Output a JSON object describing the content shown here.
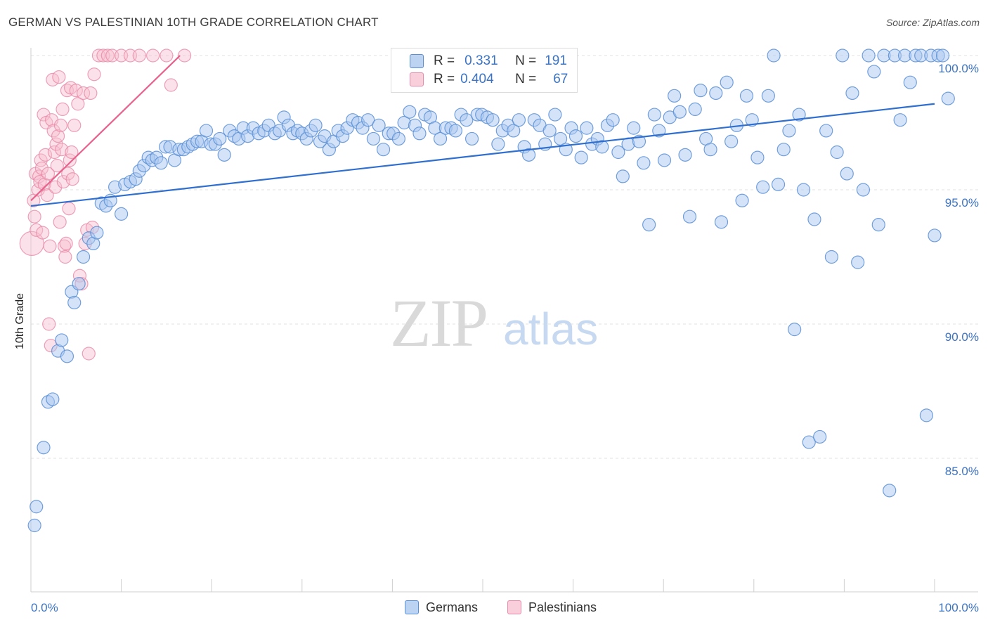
{
  "title": "GERMAN VS PALESTINIAN 10TH GRADE CORRELATION CHART",
  "source": "Source: ZipAtlas.com",
  "watermark": {
    "zip": "ZIP",
    "atlas": "atlas"
  },
  "legend": {
    "rows": [
      {
        "r_label": "R =",
        "r_value": "0.331",
        "n_label": "N =",
        "n_value": "191"
      },
      {
        "r_label": "R =",
        "r_value": "0.404",
        "n_label": "N =",
        "n_value": "67"
      }
    ]
  },
  "bottom_legend": {
    "germans": "Germans",
    "palestinians": "Palestinians"
  },
  "colors": {
    "german_fill": "#a9c8ef",
    "german_stroke": "#5a8fd6",
    "german_line": "#2f6fcf",
    "palestinian_fill": "#f6bfd0",
    "palestinian_stroke": "#e88aa8",
    "palestinian_line": "#e8628d",
    "tick_text": "#3b73c5"
  },
  "chart_data": {
    "type": "scatter",
    "title": "GERMAN VS PALESTINIAN 10TH GRADE CORRELATION CHART",
    "xlabel": "",
    "ylabel": "10th Grade",
    "xlim": [
      0,
      100
    ],
    "ylim": [
      80.0,
      100.5
    ],
    "x_tick_labels": [
      "0.0%",
      "100.0%"
    ],
    "y_ticks": [
      85,
      90,
      95,
      100
    ],
    "y_tick_labels": [
      "85.0%",
      "90.0%",
      "95.0%",
      "100.0%"
    ],
    "grid": true,
    "legend_position": "top-center",
    "series": [
      {
        "name": "Germans",
        "r": 0.331,
        "n": 191,
        "trend": {
          "x": [
            0,
            100
          ],
          "y": [
            94.4,
            98.2
          ]
        },
        "points": [
          [
            0.4,
            82.5
          ],
          [
            0.6,
            83.2
          ],
          [
            1.4,
            85.4
          ],
          [
            1.9,
            87.1
          ],
          [
            2.4,
            87.2
          ],
          [
            3.0,
            89.0
          ],
          [
            3.4,
            89.4
          ],
          [
            4.0,
            88.8
          ],
          [
            4.5,
            91.2
          ],
          [
            4.8,
            90.8
          ],
          [
            5.3,
            91.5
          ],
          [
            5.8,
            92.5
          ],
          [
            6.4,
            93.2
          ],
          [
            6.9,
            93.0
          ],
          [
            7.3,
            93.4
          ],
          [
            7.8,
            94.5
          ],
          [
            8.3,
            94.4
          ],
          [
            8.8,
            94.6
          ],
          [
            9.3,
            95.1
          ],
          [
            10.0,
            94.1
          ],
          [
            10.4,
            95.2
          ],
          [
            11.0,
            95.3
          ],
          [
            11.6,
            95.4
          ],
          [
            12.0,
            95.7
          ],
          [
            12.5,
            95.9
          ],
          [
            13.0,
            96.2
          ],
          [
            13.4,
            96.1
          ],
          [
            13.9,
            96.2
          ],
          [
            14.4,
            96.0
          ],
          [
            14.9,
            96.6
          ],
          [
            15.4,
            96.6
          ],
          [
            15.9,
            96.1
          ],
          [
            16.4,
            96.5
          ],
          [
            16.9,
            96.5
          ],
          [
            17.4,
            96.6
          ],
          [
            17.9,
            96.7
          ],
          [
            18.4,
            96.8
          ],
          [
            18.9,
            96.8
          ],
          [
            19.4,
            97.2
          ],
          [
            19.9,
            96.7
          ],
          [
            20.4,
            96.7
          ],
          [
            20.9,
            96.9
          ],
          [
            21.4,
            96.3
          ],
          [
            22.0,
            97.2
          ],
          [
            22.5,
            97.0
          ],
          [
            23.0,
            96.9
          ],
          [
            23.5,
            97.3
          ],
          [
            24.0,
            97.0
          ],
          [
            24.6,
            97.3
          ],
          [
            25.2,
            97.1
          ],
          [
            25.8,
            97.2
          ],
          [
            26.3,
            97.4
          ],
          [
            27.0,
            97.1
          ],
          [
            27.5,
            97.2
          ],
          [
            28.0,
            97.7
          ],
          [
            28.5,
            97.4
          ],
          [
            29.0,
            97.1
          ],
          [
            29.5,
            97.2
          ],
          [
            30.0,
            97.1
          ],
          [
            30.5,
            96.9
          ],
          [
            31.0,
            97.2
          ],
          [
            31.5,
            97.4
          ],
          [
            32.0,
            96.8
          ],
          [
            32.5,
            97.0
          ],
          [
            33.0,
            96.5
          ],
          [
            33.5,
            96.8
          ],
          [
            34.0,
            97.2
          ],
          [
            34.5,
            97.0
          ],
          [
            35.0,
            97.3
          ],
          [
            35.6,
            97.6
          ],
          [
            36.2,
            97.5
          ],
          [
            36.7,
            97.3
          ],
          [
            37.3,
            97.6
          ],
          [
            37.9,
            96.9
          ],
          [
            38.5,
            97.4
          ],
          [
            39.0,
            96.5
          ],
          [
            39.6,
            97.1
          ],
          [
            40.1,
            97.1
          ],
          [
            40.7,
            96.9
          ],
          [
            41.3,
            97.5
          ],
          [
            41.9,
            97.9
          ],
          [
            42.5,
            97.4
          ],
          [
            43.0,
            97.1
          ],
          [
            43.6,
            97.8
          ],
          [
            44.2,
            97.7
          ],
          [
            44.7,
            97.3
          ],
          [
            45.3,
            96.9
          ],
          [
            45.9,
            97.3
          ],
          [
            46.5,
            97.3
          ],
          [
            47.0,
            97.2
          ],
          [
            47.6,
            97.8
          ],
          [
            48.2,
            97.6
          ],
          [
            48.8,
            96.9
          ],
          [
            49.4,
            97.8
          ],
          [
            49.9,
            97.8
          ],
          [
            50.5,
            97.7
          ],
          [
            51.1,
            97.6
          ],
          [
            51.7,
            96.7
          ],
          [
            52.2,
            97.2
          ],
          [
            52.8,
            97.4
          ],
          [
            53.4,
            97.2
          ],
          [
            54.0,
            97.6
          ],
          [
            54.6,
            96.6
          ],
          [
            55.1,
            96.3
          ],
          [
            55.7,
            97.6
          ],
          [
            56.3,
            97.4
          ],
          [
            56.9,
            96.7
          ],
          [
            57.4,
            97.2
          ],
          [
            58.0,
            97.8
          ],
          [
            58.6,
            96.9
          ],
          [
            59.2,
            96.5
          ],
          [
            59.8,
            97.3
          ],
          [
            60.3,
            97.0
          ],
          [
            60.9,
            96.2
          ],
          [
            61.5,
            97.3
          ],
          [
            62.1,
            96.7
          ],
          [
            62.7,
            96.9
          ],
          [
            63.2,
            96.6
          ],
          [
            63.8,
            97.4
          ],
          [
            64.4,
            97.6
          ],
          [
            65.0,
            96.4
          ],
          [
            65.5,
            95.5
          ],
          [
            66.1,
            96.7
          ],
          [
            66.7,
            97.3
          ],
          [
            67.3,
            96.8
          ],
          [
            67.8,
            96.0
          ],
          [
            68.4,
            93.7
          ],
          [
            69.0,
            97.8
          ],
          [
            69.5,
            97.2
          ],
          [
            70.1,
            96.1
          ],
          [
            70.7,
            97.7
          ],
          [
            71.2,
            98.5
          ],
          [
            71.8,
            97.9
          ],
          [
            72.4,
            96.3
          ],
          [
            72.9,
            94.0
          ],
          [
            73.5,
            98.0
          ],
          [
            74.1,
            98.7
          ],
          [
            74.7,
            96.9
          ],
          [
            75.2,
            96.5
          ],
          [
            75.8,
            98.6
          ],
          [
            76.4,
            93.8
          ],
          [
            77.0,
            99.0
          ],
          [
            77.5,
            96.8
          ],
          [
            78.1,
            97.4
          ],
          [
            78.7,
            94.6
          ],
          [
            79.2,
            98.5
          ],
          [
            79.8,
            97.6
          ],
          [
            80.4,
            96.2
          ],
          [
            81.0,
            95.1
          ],
          [
            81.6,
            98.5
          ],
          [
            82.2,
            100.0
          ],
          [
            82.7,
            95.2
          ],
          [
            83.3,
            96.5
          ],
          [
            83.9,
            97.2
          ],
          [
            84.5,
            89.8
          ],
          [
            85.0,
            97.8
          ],
          [
            85.5,
            95.0
          ],
          [
            86.1,
            85.6
          ],
          [
            86.7,
            93.9
          ],
          [
            87.3,
            85.8
          ],
          [
            88.0,
            97.2
          ],
          [
            88.6,
            92.5
          ],
          [
            89.2,
            96.4
          ],
          [
            89.8,
            100.0
          ],
          [
            90.3,
            95.6
          ],
          [
            90.9,
            98.6
          ],
          [
            91.5,
            92.3
          ],
          [
            92.1,
            95.0
          ],
          [
            92.7,
            100.0
          ],
          [
            93.3,
            99.4
          ],
          [
            93.8,
            93.7
          ],
          [
            94.4,
            100.0
          ],
          [
            95.0,
            83.8
          ],
          [
            95.6,
            100.0
          ],
          [
            96.2,
            97.6
          ],
          [
            96.7,
            100.0
          ],
          [
            97.3,
            99.0
          ],
          [
            97.9,
            100.0
          ],
          [
            98.5,
            100.0
          ],
          [
            99.1,
            86.6
          ],
          [
            99.6,
            100.0
          ],
          [
            100.0,
            93.3
          ],
          [
            100.4,
            100.0
          ],
          [
            100.9,
            100.0
          ],
          [
            101.5,
            98.4
          ]
        ]
      },
      {
        "name": "Palestinians",
        "r": 0.404,
        "n": 67,
        "trend": {
          "x": [
            0,
            16.5
          ],
          "y": [
            94.6,
            100.0
          ]
        },
        "points": [
          [
            0.1,
            93.0
          ],
          [
            0.3,
            94.6
          ],
          [
            0.4,
            94.0
          ],
          [
            0.5,
            95.6
          ],
          [
            0.6,
            93.5
          ],
          [
            0.8,
            95.0
          ],
          [
            0.9,
            95.5
          ],
          [
            1.0,
            95.3
          ],
          [
            1.1,
            96.1
          ],
          [
            1.2,
            95.8
          ],
          [
            1.3,
            93.4
          ],
          [
            1.4,
            97.8
          ],
          [
            1.5,
            95.2
          ],
          [
            1.6,
            96.3
          ],
          [
            1.7,
            97.5
          ],
          [
            1.8,
            94.8
          ],
          [
            1.9,
            95.6
          ],
          [
            2.0,
            90.0
          ],
          [
            2.1,
            92.9
          ],
          [
            2.2,
            89.2
          ],
          [
            2.3,
            97.6
          ],
          [
            2.4,
            99.1
          ],
          [
            2.5,
            97.2
          ],
          [
            2.6,
            96.4
          ],
          [
            2.7,
            95.1
          ],
          [
            2.8,
            96.7
          ],
          [
            2.9,
            95.9
          ],
          [
            3.0,
            97.0
          ],
          [
            3.1,
            99.2
          ],
          [
            3.2,
            93.8
          ],
          [
            3.3,
            97.4
          ],
          [
            3.4,
            96.5
          ],
          [
            3.5,
            98.0
          ],
          [
            3.6,
            95.3
          ],
          [
            3.7,
            92.9
          ],
          [
            3.8,
            92.5
          ],
          [
            3.9,
            93.0
          ],
          [
            4.0,
            98.7
          ],
          [
            4.1,
            95.6
          ],
          [
            4.2,
            94.3
          ],
          [
            4.3,
            96.1
          ],
          [
            4.4,
            98.8
          ],
          [
            4.5,
            96.4
          ],
          [
            4.6,
            95.4
          ],
          [
            4.8,
            97.4
          ],
          [
            5.0,
            98.7
          ],
          [
            5.2,
            98.2
          ],
          [
            5.4,
            91.8
          ],
          [
            5.6,
            91.5
          ],
          [
            5.8,
            98.6
          ],
          [
            6.0,
            93.0
          ],
          [
            6.2,
            93.5
          ],
          [
            6.4,
            88.9
          ],
          [
            6.6,
            98.6
          ],
          [
            6.8,
            93.6
          ],
          [
            7.0,
            99.3
          ],
          [
            7.5,
            100.0
          ],
          [
            8.0,
            100.0
          ],
          [
            8.5,
            100.0
          ],
          [
            9.0,
            100.0
          ],
          [
            10.0,
            100.0
          ],
          [
            11.0,
            100.0
          ],
          [
            12.0,
            100.0
          ],
          [
            13.5,
            100.0
          ],
          [
            15.0,
            100.0
          ],
          [
            15.5,
            98.9
          ],
          [
            17.0,
            100.0
          ]
        ]
      }
    ]
  }
}
